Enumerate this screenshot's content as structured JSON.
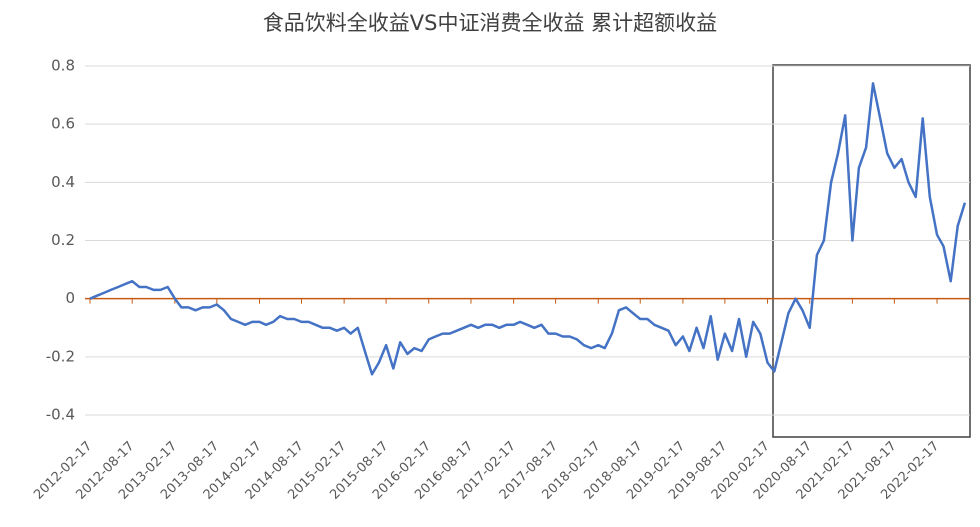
{
  "chart_data": {
    "type": "line",
    "title": "食品饮料全收益VS中证消费全收益  累计超额收益",
    "x": [
      "2012-02-17",
      "2012-03-17",
      "2012-04-17",
      "2012-05-17",
      "2012-06-17",
      "2012-07-17",
      "2012-08-17",
      "2012-09-17",
      "2012-10-17",
      "2012-11-17",
      "2012-12-17",
      "2013-01-17",
      "2013-02-17",
      "2013-03-17",
      "2013-04-17",
      "2013-05-17",
      "2013-06-17",
      "2013-07-17",
      "2013-08-17",
      "2013-09-17",
      "2013-10-17",
      "2013-11-17",
      "2013-12-17",
      "2014-01-17",
      "2014-02-17",
      "2014-03-17",
      "2014-04-17",
      "2014-05-17",
      "2014-06-17",
      "2014-07-17",
      "2014-08-17",
      "2014-09-17",
      "2014-10-17",
      "2014-11-17",
      "2014-12-17",
      "2015-01-17",
      "2015-02-17",
      "2015-03-17",
      "2015-04-17",
      "2015-05-17",
      "2015-06-17",
      "2015-07-17",
      "2015-08-17",
      "2015-09-17",
      "2015-10-17",
      "2015-11-17",
      "2015-12-17",
      "2016-01-17",
      "2016-02-17",
      "2016-03-17",
      "2016-04-17",
      "2016-05-17",
      "2016-06-17",
      "2016-07-17",
      "2016-08-17",
      "2016-09-17",
      "2016-10-17",
      "2016-11-17",
      "2016-12-17",
      "2017-01-17",
      "2017-02-17",
      "2017-03-17",
      "2017-04-17",
      "2017-05-17",
      "2017-06-17",
      "2017-07-17",
      "2017-08-17",
      "2017-09-17",
      "2017-10-17",
      "2017-11-17",
      "2017-12-17",
      "2018-01-17",
      "2018-02-17",
      "2018-03-17",
      "2018-04-17",
      "2018-05-17",
      "2018-06-17",
      "2018-07-17",
      "2018-08-17",
      "2018-09-17",
      "2018-10-17",
      "2018-11-17",
      "2018-12-17",
      "2019-01-17",
      "2019-02-17",
      "2019-03-17",
      "2019-04-17",
      "2019-05-17",
      "2019-06-17",
      "2019-07-17",
      "2019-08-17",
      "2019-09-17",
      "2019-10-17",
      "2019-11-17",
      "2019-12-17",
      "2020-01-17",
      "2020-02-17",
      "2020-03-17",
      "2020-04-17",
      "2020-05-17",
      "2020-06-17",
      "2020-07-17",
      "2020-08-17",
      "2020-09-17",
      "2020-10-17",
      "2020-11-17",
      "2020-12-17",
      "2021-01-17",
      "2021-02-17",
      "2021-03-17",
      "2021-04-17",
      "2021-05-17",
      "2021-06-17",
      "2021-07-17",
      "2021-08-17",
      "2021-09-17",
      "2021-10-17",
      "2021-11-17",
      "2021-12-17",
      "2022-01-17",
      "2022-02-17",
      "2022-03-17",
      "2022-04-17",
      "2022-05-17",
      "2022-06-17"
    ],
    "series": [
      {
        "color": "#4472c4",
        "values": [
          0.0,
          0.01,
          0.02,
          0.03,
          0.04,
          0.05,
          0.06,
          0.04,
          0.04,
          0.03,
          0.03,
          0.04,
          0.0,
          -0.03,
          -0.03,
          -0.04,
          -0.03,
          -0.03,
          -0.02,
          -0.04,
          -0.07,
          -0.08,
          -0.09,
          -0.08,
          -0.08,
          -0.09,
          -0.08,
          -0.06,
          -0.07,
          -0.07,
          -0.08,
          -0.08,
          -0.09,
          -0.1,
          -0.1,
          -0.11,
          -0.1,
          -0.12,
          -0.1,
          -0.18,
          -0.26,
          -0.22,
          -0.16,
          -0.24,
          -0.15,
          -0.19,
          -0.17,
          -0.18,
          -0.14,
          -0.13,
          -0.12,
          -0.12,
          -0.11,
          -0.1,
          -0.09,
          -0.1,
          -0.09,
          -0.09,
          -0.1,
          -0.09,
          -0.09,
          -0.08,
          -0.09,
          -0.1,
          -0.09,
          -0.12,
          -0.12,
          -0.13,
          -0.13,
          -0.14,
          -0.16,
          -0.17,
          -0.16,
          -0.17,
          -0.12,
          -0.04,
          -0.03,
          -0.05,
          -0.07,
          -0.07,
          -0.09,
          -0.1,
          -0.11,
          -0.16,
          -0.13,
          -0.18,
          -0.1,
          -0.17,
          -0.06,
          -0.21,
          -0.12,
          -0.18,
          -0.07,
          -0.2,
          -0.08,
          -0.12,
          -0.22,
          -0.25,
          -0.15,
          -0.05,
          0.0,
          -0.04,
          -0.1,
          0.15,
          0.2,
          0.4,
          0.5,
          0.63,
          0.2,
          0.45,
          0.52,
          0.74,
          0.62,
          0.5,
          0.45,
          0.48,
          0.4,
          0.35,
          0.62,
          0.35,
          0.22,
          0.18,
          0.06,
          0.25,
          0.33
        ]
      }
    ],
    "xlim": [
      "2012-02-17",
      "2022-08-17"
    ],
    "xticks": [
      "2012-02-17",
      "2012-08-17",
      "2013-02-17",
      "2013-08-17",
      "2014-02-17",
      "2014-08-17",
      "2015-02-17",
      "2015-08-17",
      "2016-02-17",
      "2016-08-17",
      "2017-02-17",
      "2017-08-17",
      "2018-02-17",
      "2018-08-17",
      "2019-02-17",
      "2019-08-17",
      "2020-02-17",
      "2020-08-17",
      "2021-02-17",
      "2021-08-17",
      "2022-02-17"
    ],
    "ylim": [
      -0.4,
      0.8
    ],
    "yticks": [
      -0.4,
      -0.2,
      0,
      0.2,
      0.4,
      0.6,
      0.8
    ],
    "grid": true
  }
}
